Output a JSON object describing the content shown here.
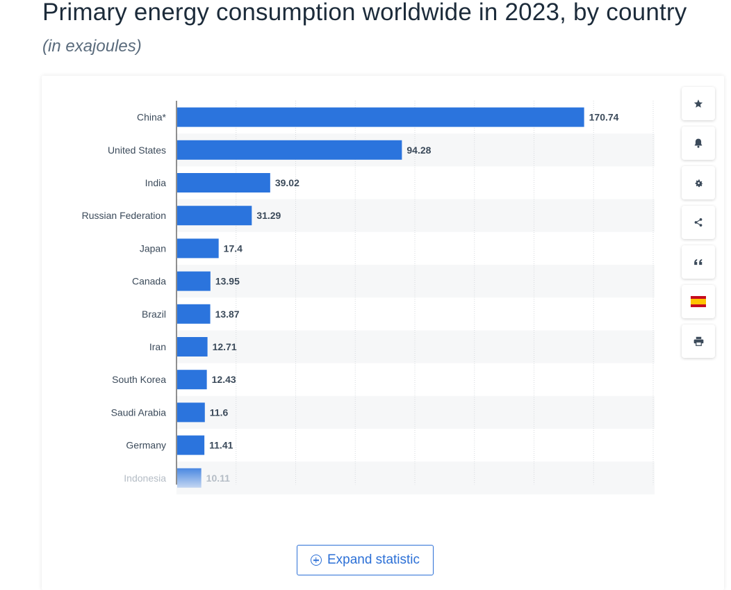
{
  "header": {
    "title": "Primary energy consumption worldwide in 2023, by country",
    "subtitle": "(in exajoules)"
  },
  "chart_data": {
    "type": "bar",
    "orientation": "horizontal",
    "title": "Primary energy consumption worldwide in 2023, by country",
    "subtitle": "(in exajoules)",
    "xlabel": "",
    "ylabel": "",
    "categories": [
      "China*",
      "United States",
      "India",
      "Russian Federation",
      "Japan",
      "Canada",
      "Brazil",
      "Iran",
      "South Korea",
      "Saudi Arabia",
      "Germany",
      "Indonesia"
    ],
    "values": [
      170.74,
      94.28,
      39.02,
      31.29,
      17.4,
      13.95,
      13.87,
      12.71,
      12.43,
      11.6,
      11.41,
      10.11
    ],
    "value_labels": [
      "170.74",
      "94.28",
      "39.02",
      "31.29",
      "17.4",
      "13.95",
      "13.87",
      "12.71",
      "12.43",
      "11.6",
      "11.41",
      "10.11"
    ],
    "xlim": [
      0,
      200
    ],
    "grid": true,
    "bar_color": "#2b74dd",
    "faded_last_row": true
  },
  "toolbar": {
    "items": [
      {
        "icon": "star-icon",
        "label": "Favorite"
      },
      {
        "icon": "bell-icon",
        "label": "Notification"
      },
      {
        "icon": "gear-icon",
        "label": "Settings"
      },
      {
        "icon": "share-icon",
        "label": "Share"
      },
      {
        "icon": "quote-icon",
        "label": "Cite"
      },
      {
        "icon": "flag-icon",
        "label": "Language"
      },
      {
        "icon": "print-icon",
        "label": "Print"
      }
    ]
  },
  "expand": {
    "label": "Expand statistic",
    "color": "#2b6fd6"
  }
}
